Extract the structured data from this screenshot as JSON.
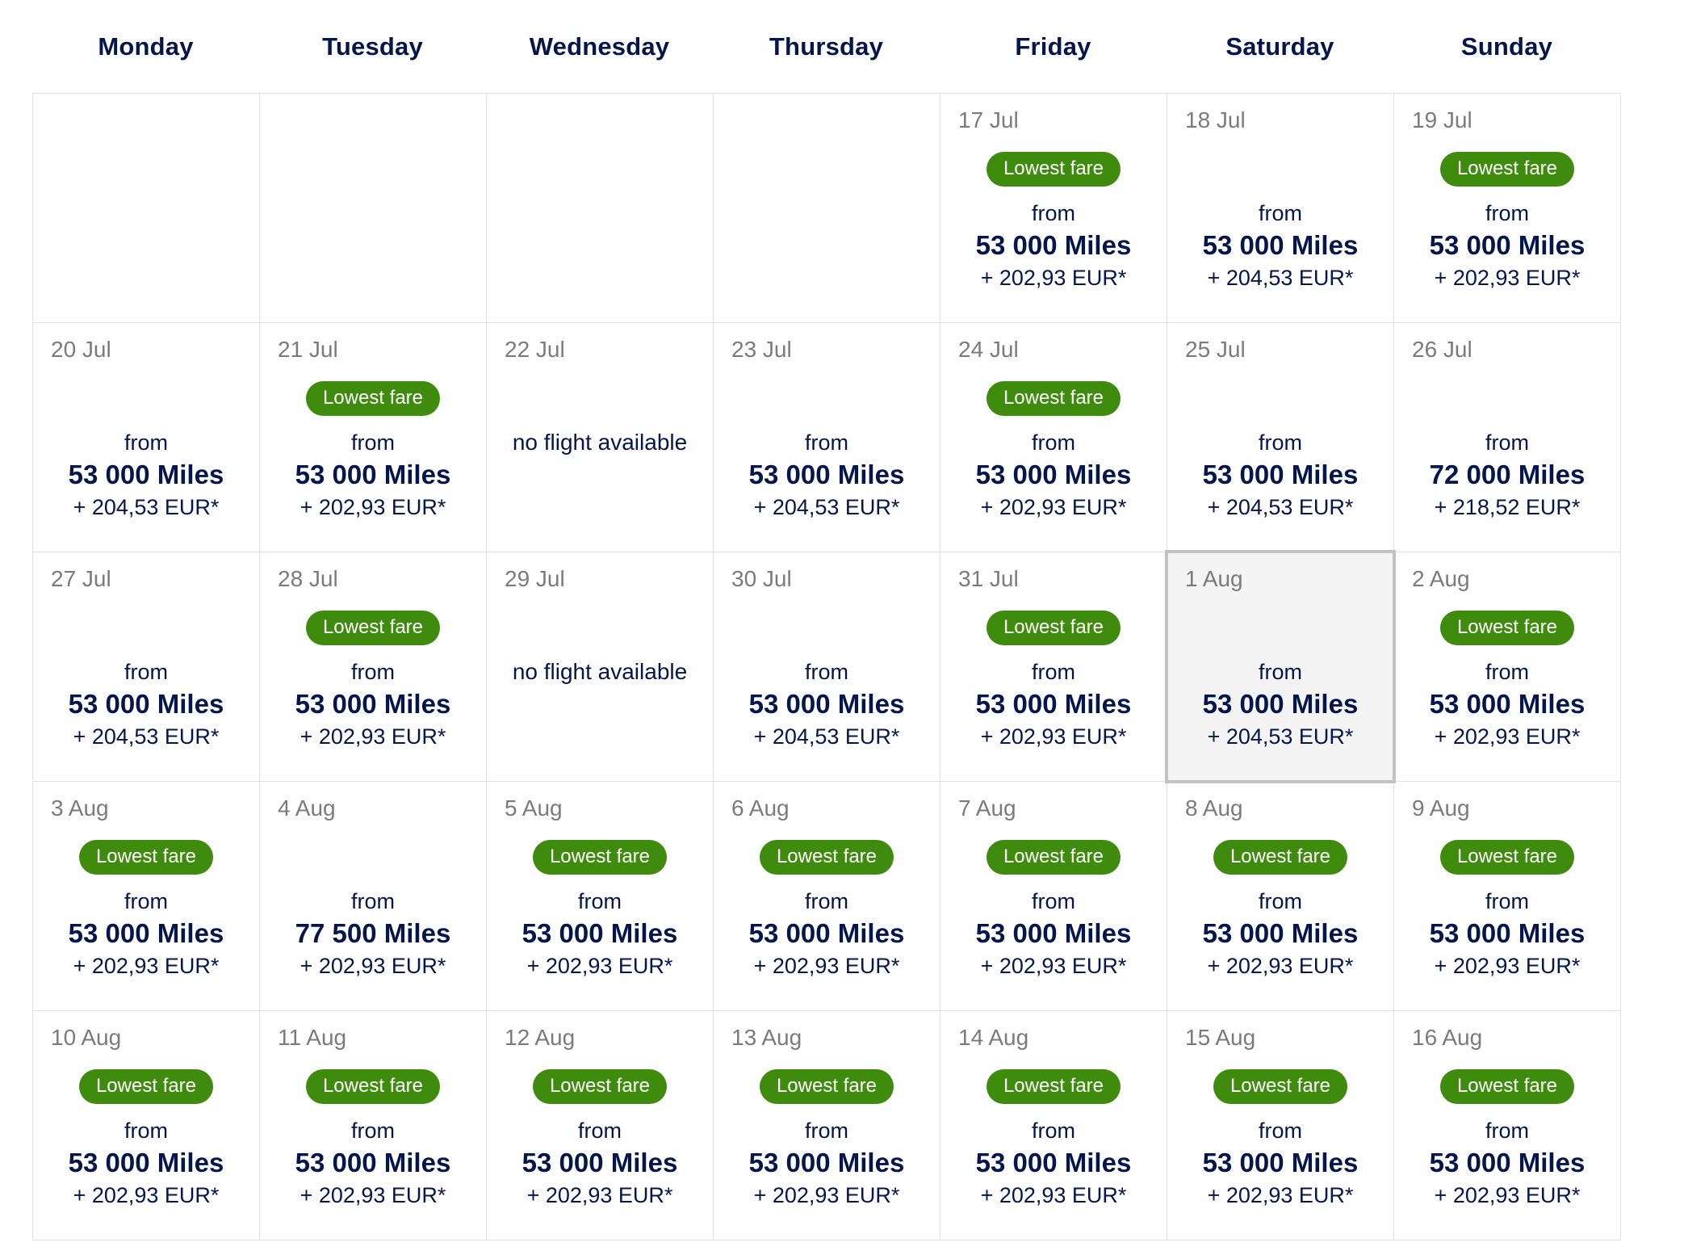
{
  "calendar": {
    "weekday_headers": [
      "Monday",
      "Tuesday",
      "Wednesday",
      "Thursday",
      "Friday",
      "Saturday",
      "Sunday"
    ],
    "labels": {
      "badge": "Lowest fare",
      "from": "from",
      "no_flight": "no flight available"
    },
    "colors": {
      "navy": "#05164d",
      "date_gray": "#7b7b7b",
      "badge_green": "#3e8b0e",
      "badge_text": "#ffffff",
      "cell_border": "#e1e1e1",
      "selected_border": "#c2c2c2",
      "selected_bg": "#f4f4f4"
    },
    "weeks": [
      [
        {
          "type": "empty"
        },
        {
          "type": "empty"
        },
        {
          "type": "empty"
        },
        {
          "type": "empty"
        },
        {
          "type": "fare",
          "date": "17 Jul",
          "lowest_fare": true,
          "miles": "53 000 Miles",
          "taxes": "+ 202,93 EUR*",
          "selected": false
        },
        {
          "type": "fare",
          "date": "18 Jul",
          "lowest_fare": false,
          "miles": "53 000 Miles",
          "taxes": "+ 204,53 EUR*",
          "selected": false
        },
        {
          "type": "fare",
          "date": "19 Jul",
          "lowest_fare": true,
          "miles": "53 000 Miles",
          "taxes": "+ 202,93 EUR*",
          "selected": false
        }
      ],
      [
        {
          "type": "fare",
          "date": "20 Jul",
          "lowest_fare": false,
          "miles": "53 000 Miles",
          "taxes": "+ 204,53 EUR*",
          "selected": false
        },
        {
          "type": "fare",
          "date": "21 Jul",
          "lowest_fare": true,
          "miles": "53 000 Miles",
          "taxes": "+ 202,93 EUR*",
          "selected": false
        },
        {
          "type": "noflight",
          "date": "22 Jul"
        },
        {
          "type": "fare",
          "date": "23 Jul",
          "lowest_fare": false,
          "miles": "53 000 Miles",
          "taxes": "+ 204,53 EUR*",
          "selected": false
        },
        {
          "type": "fare",
          "date": "24 Jul",
          "lowest_fare": true,
          "miles": "53 000 Miles",
          "taxes": "+ 202,93 EUR*",
          "selected": false
        },
        {
          "type": "fare",
          "date": "25 Jul",
          "lowest_fare": false,
          "miles": "53 000 Miles",
          "taxes": "+ 204,53 EUR*",
          "selected": false
        },
        {
          "type": "fare",
          "date": "26 Jul",
          "lowest_fare": false,
          "miles": "72 000 Miles",
          "taxes": "+ 218,52 EUR*",
          "selected": false
        }
      ],
      [
        {
          "type": "fare",
          "date": "27 Jul",
          "lowest_fare": false,
          "miles": "53 000 Miles",
          "taxes": "+ 204,53 EUR*",
          "selected": false
        },
        {
          "type": "fare",
          "date": "28 Jul",
          "lowest_fare": true,
          "miles": "53 000 Miles",
          "taxes": "+ 202,93 EUR*",
          "selected": false
        },
        {
          "type": "noflight",
          "date": "29 Jul"
        },
        {
          "type": "fare",
          "date": "30 Jul",
          "lowest_fare": false,
          "miles": "53 000 Miles",
          "taxes": "+ 204,53 EUR*",
          "selected": false
        },
        {
          "type": "fare",
          "date": "31 Jul",
          "lowest_fare": true,
          "miles": "53 000 Miles",
          "taxes": "+ 202,93 EUR*",
          "selected": false
        },
        {
          "type": "fare",
          "date": "1 Aug",
          "lowest_fare": false,
          "miles": "53 000 Miles",
          "taxes": "+ 204,53 EUR*",
          "selected": true
        },
        {
          "type": "fare",
          "date": "2 Aug",
          "lowest_fare": true,
          "miles": "53 000 Miles",
          "taxes": "+ 202,93 EUR*",
          "selected": false
        }
      ],
      [
        {
          "type": "fare",
          "date": "3 Aug",
          "lowest_fare": true,
          "miles": "53 000 Miles",
          "taxes": "+ 202,93 EUR*",
          "selected": false
        },
        {
          "type": "fare",
          "date": "4 Aug",
          "lowest_fare": false,
          "miles": "77 500 Miles",
          "taxes": "+ 202,93 EUR*",
          "selected": false
        },
        {
          "type": "fare",
          "date": "5 Aug",
          "lowest_fare": true,
          "miles": "53 000 Miles",
          "taxes": "+ 202,93 EUR*",
          "selected": false
        },
        {
          "type": "fare",
          "date": "6 Aug",
          "lowest_fare": true,
          "miles": "53 000 Miles",
          "taxes": "+ 202,93 EUR*",
          "selected": false
        },
        {
          "type": "fare",
          "date": "7 Aug",
          "lowest_fare": true,
          "miles": "53 000 Miles",
          "taxes": "+ 202,93 EUR*",
          "selected": false
        },
        {
          "type": "fare",
          "date": "8 Aug",
          "lowest_fare": true,
          "miles": "53 000 Miles",
          "taxes": "+ 202,93 EUR*",
          "selected": false
        },
        {
          "type": "fare",
          "date": "9 Aug",
          "lowest_fare": true,
          "miles": "53 000 Miles",
          "taxes": "+ 202,93 EUR*",
          "selected": false
        }
      ],
      [
        {
          "type": "fare",
          "date": "10 Aug",
          "lowest_fare": true,
          "miles": "53 000 Miles",
          "taxes": "+ 202,93 EUR*",
          "selected": false
        },
        {
          "type": "fare",
          "date": "11 Aug",
          "lowest_fare": true,
          "miles": "53 000 Miles",
          "taxes": "+ 202,93 EUR*",
          "selected": false
        },
        {
          "type": "fare",
          "date": "12 Aug",
          "lowest_fare": true,
          "miles": "53 000 Miles",
          "taxes": "+ 202,93 EUR*",
          "selected": false
        },
        {
          "type": "fare",
          "date": "13 Aug",
          "lowest_fare": true,
          "miles": "53 000 Miles",
          "taxes": "+ 202,93 EUR*",
          "selected": false
        },
        {
          "type": "fare",
          "date": "14 Aug",
          "lowest_fare": true,
          "miles": "53 000 Miles",
          "taxes": "+ 202,93 EUR*",
          "selected": false
        },
        {
          "type": "fare",
          "date": "15 Aug",
          "lowest_fare": true,
          "miles": "53 000 Miles",
          "taxes": "+ 202,93 EUR*",
          "selected": false
        },
        {
          "type": "fare",
          "date": "16 Aug",
          "lowest_fare": true,
          "miles": "53 000 Miles",
          "taxes": "+ 202,93 EUR*",
          "selected": false
        }
      ]
    ]
  }
}
